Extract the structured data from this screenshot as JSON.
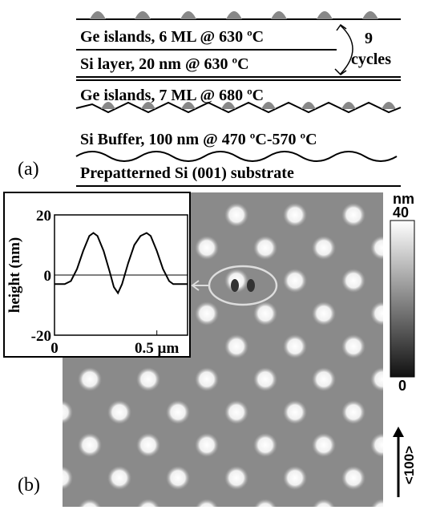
{
  "schematic": {
    "label": "(a)",
    "layers": [
      "Ge islands, 6 ML @ 630 ºC",
      "Si layer, 20 nm @ 630 ºC",
      "Ge islands, 7 ML @ 680 ºC",
      "Si Buffer, 100 nm @ 470 ºC-570 ºC",
      "Prepatterned Si (001) substrate"
    ],
    "cycles_count": "9",
    "cycles_word": "cycles"
  },
  "afm": {
    "label": "(b)",
    "colorbar_unit": "nm",
    "colorbar_max": "40",
    "colorbar_min": "0",
    "direction": "<100>"
  },
  "chart_data": {
    "type": "line",
    "ylabel": "height (nm)",
    "x": [
      0,
      0.02,
      0.05,
      0.08,
      0.11,
      0.14,
      0.17,
      0.19,
      0.21,
      0.24,
      0.27,
      0.29,
      0.31,
      0.33,
      0.36,
      0.39,
      0.42,
      0.45,
      0.47,
      0.5,
      0.53,
      0.56,
      0.58,
      0.62,
      0.65
    ],
    "series": [
      {
        "color": "#000000",
        "values": [
          -3,
          -3,
          -3,
          -2,
          2,
          8,
          13,
          14,
          13,
          8,
          1,
          -4,
          -6,
          -3,
          4,
          10,
          13,
          14,
          13,
          8,
          2,
          -2,
          -3,
          -3,
          -3
        ]
      }
    ],
    "xlim": [
      0,
      0.65
    ],
    "ylim": [
      -20,
      20
    ],
    "xticks": [
      0,
      {
        "value": 0.5,
        "label": "0.5 µm"
      }
    ],
    "yticks": [
      -20,
      0,
      20
    ]
  }
}
